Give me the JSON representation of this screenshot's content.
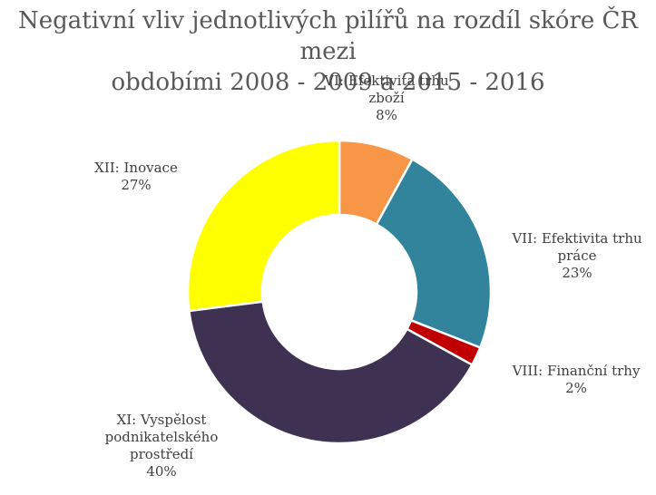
{
  "chart_data": {
    "type": "pie",
    "donut": true,
    "title_lines": [
      "Negativní vliv jednotlivých pilířů na rozdíl skóre ČR mezi",
      "obdobími 2008 - 2009 a 2015 - 2016"
    ],
    "slices": [
      {
        "label_lines": [
          "VI: Efektivita trhu",
          "zboží"
        ],
        "value": 8,
        "percent_label": "8%",
        "color": "#F79646"
      },
      {
        "label_lines": [
          "VII: Efektivita trhu",
          "práce"
        ],
        "value": 23,
        "percent_label": "23%",
        "color": "#31849B"
      },
      {
        "label_lines": [
          "VIII: Finanční trhy"
        ],
        "value": 2,
        "percent_label": "2%",
        "color": "#C00000"
      },
      {
        "label_lines": [
          "XI: Vyspělost",
          "podnikatelského",
          "prostředí"
        ],
        "value": 40,
        "percent_label": "40%",
        "color": "#3F3151"
      },
      {
        "label_lines": [
          "XII: Inovace"
        ],
        "value": 27,
        "percent_label": "27%",
        "color": "#FFFF00"
      }
    ]
  }
}
